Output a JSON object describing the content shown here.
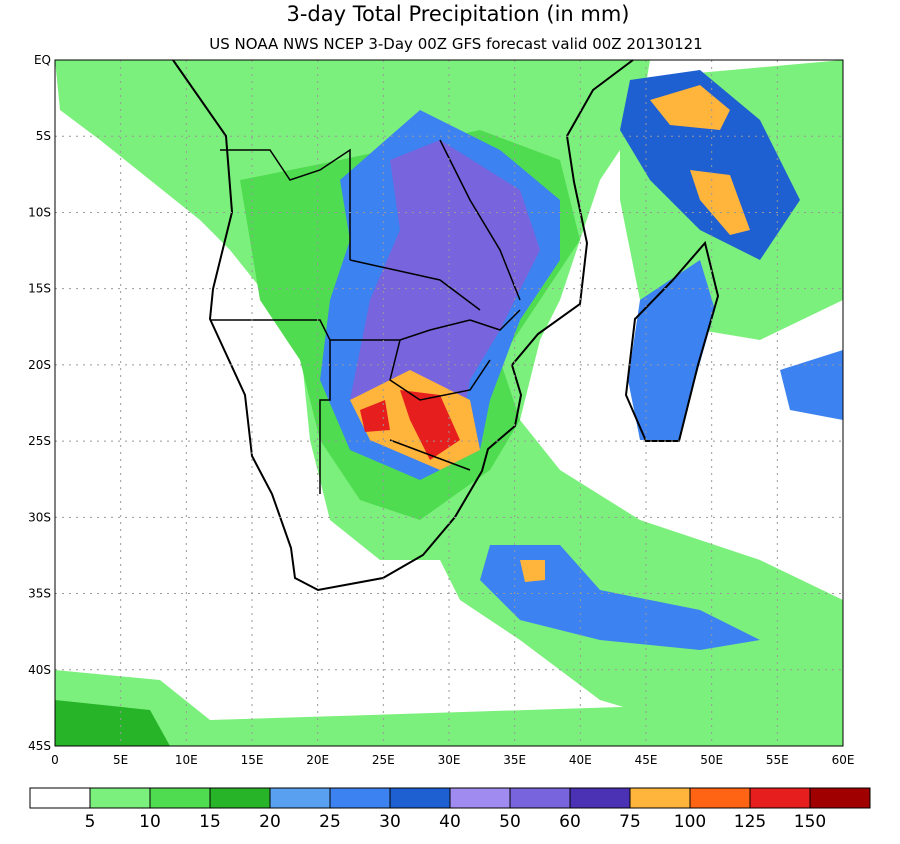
{
  "header": {
    "title": "3-day Total Precipitation (in mm)",
    "subtitle": "US NOAA NWS NCEP 3-Day 00Z GFS forecast valid 00Z 20130121"
  },
  "map": {
    "lat_labels": [
      "EQ",
      "5S",
      "10S",
      "15S",
      "20S",
      "25S",
      "30S",
      "35S",
      "40S",
      "45S"
    ],
    "lon_labels": [
      "0",
      "5E",
      "10E",
      "15E",
      "20E",
      "25E",
      "30E",
      "35E",
      "40E",
      "45E",
      "50E",
      "55E",
      "60E"
    ]
  },
  "legend": {
    "colors": [
      "#ffffff",
      "#7cf07c",
      "#50dc50",
      "#28b428",
      "#5aa0f0",
      "#3c82f0",
      "#1e5fd2",
      "#a08cf0",
      "#7864dc",
      "#4b32b4",
      "#ffb43c",
      "#ff6414",
      "#e61e1e",
      "#a00000"
    ],
    "labels": [
      5,
      10,
      15,
      20,
      25,
      30,
      40,
      50,
      60,
      75,
      100,
      125,
      150
    ]
  }
}
